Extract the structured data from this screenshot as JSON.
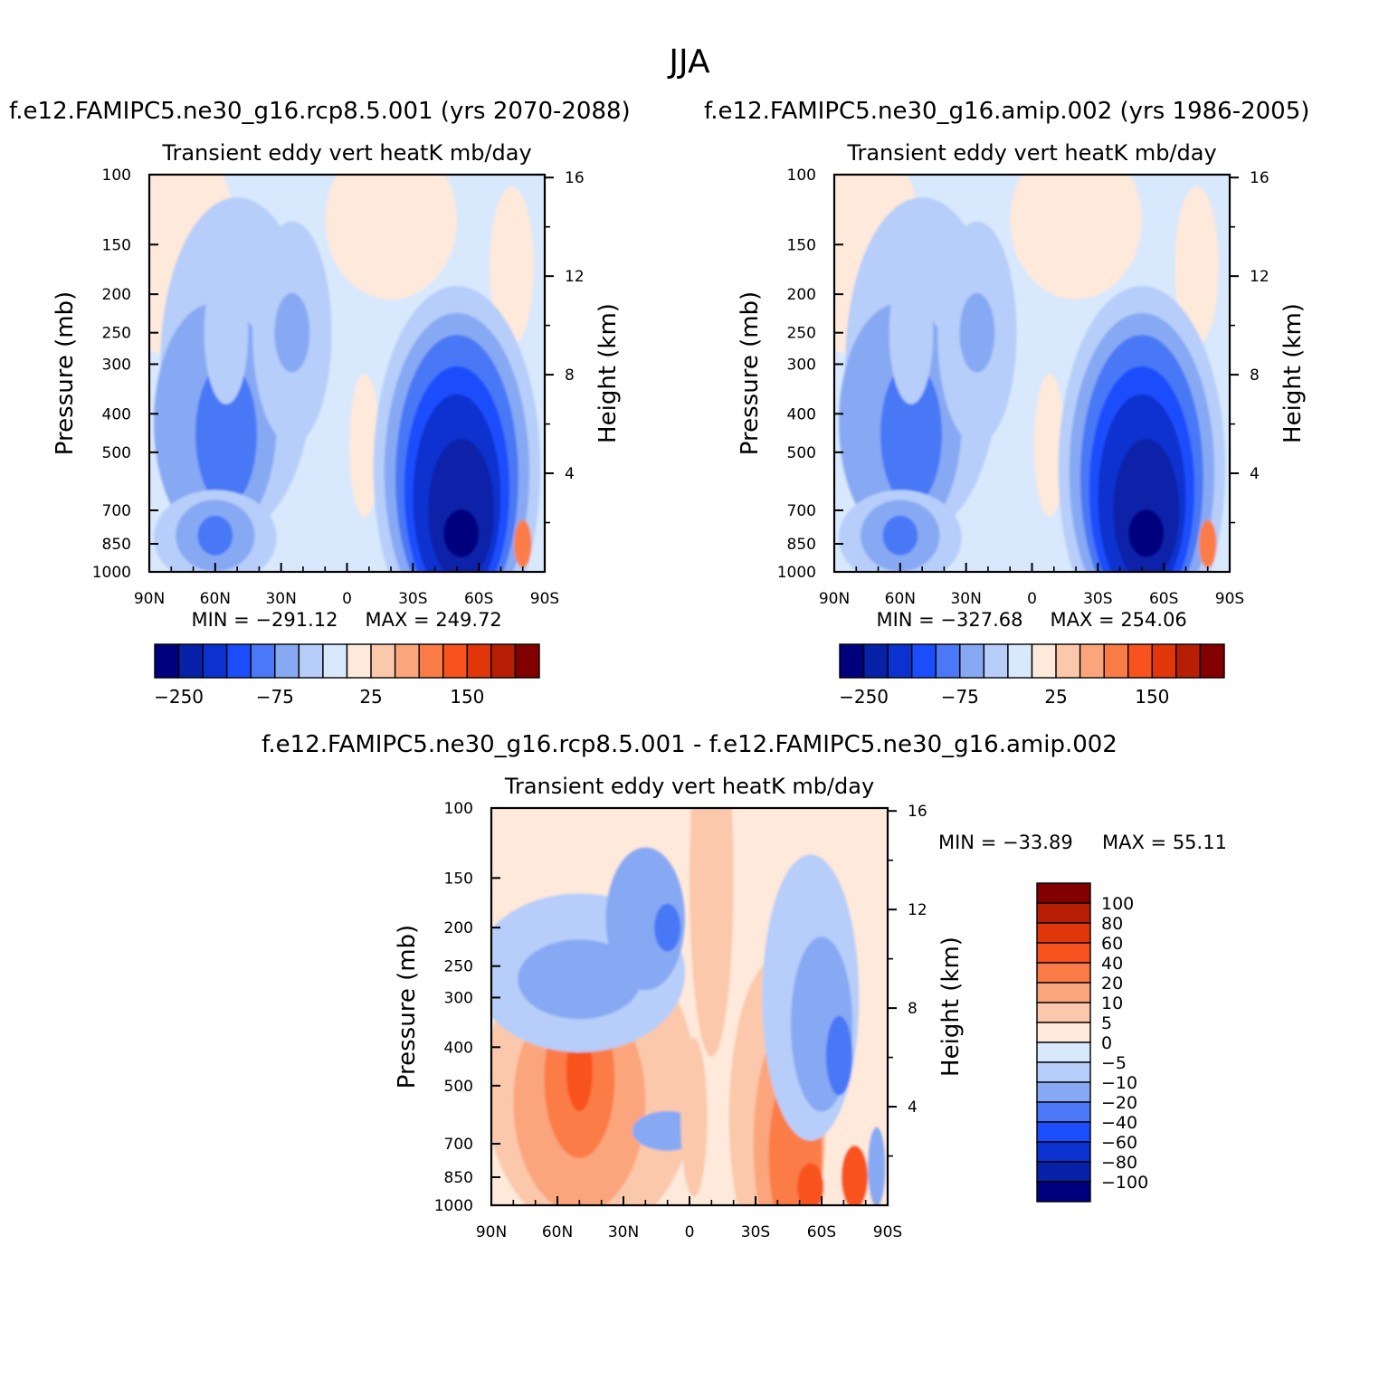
{
  "figure": {
    "title": "JJA",
    "panel_a_title": "f.e12.FAMIPC5.ne30_g16.rcp8.5.001 (yrs 2070-2088)",
    "panel_b_title": "f.e12.FAMIPC5.ne30_g16.amip.002 (yrs 1986-2005)",
    "panel_c_title": "f.e12.FAMIPC5.ne30_g16.rcp8.5.001 - f.e12.FAMIPC5.ne30_g16.amip.002"
  },
  "chart_data": [
    {
      "type": "heatmap",
      "panel": "a",
      "title": "Transient eddy vert heatK mb/day",
      "xlabel": "",
      "ylabel": "Pressure (mb)",
      "y2label": "Height (km)",
      "x_ticks": [
        "90N",
        "60N",
        "30N",
        "0",
        "30S",
        "60S",
        "90S"
      ],
      "xlim": [
        90,
        -90
      ],
      "y_ticks": [
        100,
        150,
        200,
        250,
        300,
        400,
        500,
        700,
        850,
        1000
      ],
      "ylim": [
        1000,
        100
      ],
      "y_scale": "log",
      "y2_ticks": [
        4,
        8,
        12,
        16
      ],
      "min_label": "MIN = -291.12",
      "max_label": "MAX = 249.72",
      "colorbar": {
        "orientation": "horizontal",
        "labels": [
          "-250",
          "-75",
          "25",
          "150"
        ],
        "colors": [
          "#00007f",
          "#0721a8",
          "#0b31cf",
          "#1c4dfd",
          "#4a78f6",
          "#87a9f3",
          "#b6cef9",
          "#d8e8fd",
          "#fee9da",
          "#fbc8ab",
          "#fba57d",
          "#fb7b46",
          "#f8531e",
          "#e0360a",
          "#b71f05",
          "#820000"
        ]
      }
    },
    {
      "type": "heatmap",
      "panel": "b",
      "title": "Transient eddy vert heatK mb/day",
      "xlabel": "",
      "ylabel": "Pressure (mb)",
      "y2label": "Height (km)",
      "x_ticks": [
        "90N",
        "60N",
        "30N",
        "0",
        "30S",
        "60S",
        "90S"
      ],
      "xlim": [
        90,
        -90
      ],
      "y_ticks": [
        100,
        150,
        200,
        250,
        300,
        400,
        500,
        700,
        850,
        1000
      ],
      "ylim": [
        1000,
        100
      ],
      "y_scale": "log",
      "y2_ticks": [
        4,
        8,
        12,
        16
      ],
      "min_label": "MIN = -327.68",
      "max_label": "MAX = 254.06",
      "colorbar": {
        "orientation": "horizontal",
        "labels": [
          "-250",
          "-75",
          "25",
          "150"
        ],
        "colors": [
          "#00007f",
          "#0721a8",
          "#0b31cf",
          "#1c4dfd",
          "#4a78f6",
          "#87a9f3",
          "#b6cef9",
          "#d8e8fd",
          "#fee9da",
          "#fbc8ab",
          "#fba57d",
          "#fb7b46",
          "#f8531e",
          "#e0360a",
          "#b71f05",
          "#820000"
        ]
      }
    },
    {
      "type": "heatmap",
      "panel": "c",
      "title": "Transient eddy vert heatK mb/day",
      "xlabel": "",
      "ylabel": "Pressure (mb)",
      "y2label": "Height (km)",
      "x_ticks": [
        "90N",
        "60N",
        "30N",
        "0",
        "30S",
        "60S",
        "90S"
      ],
      "xlim": [
        90,
        -90
      ],
      "y_ticks": [
        100,
        150,
        200,
        250,
        300,
        400,
        500,
        700,
        850,
        1000
      ],
      "ylim": [
        1000,
        100
      ],
      "y_scale": "log",
      "y2_ticks": [
        4,
        8,
        12,
        16
      ],
      "min_label": "MIN = -33.89",
      "max_label": "MAX =  55.11",
      "colorbar": {
        "orientation": "vertical",
        "labels": [
          "100",
          "80",
          "60",
          "40",
          "20",
          "10",
          "5",
          "0",
          "-5",
          "-10",
          "-20",
          "-40",
          "-60",
          "-80",
          "-100"
        ],
        "colors": [
          "#820000",
          "#b71f05",
          "#e0360a",
          "#f8531e",
          "#fb7b46",
          "#fba57d",
          "#fbc8ab",
          "#fee9da",
          "#d8e8fd",
          "#b6cef9",
          "#87a9f3",
          "#4a78f6",
          "#1c4dfd",
          "#0b31cf",
          "#0721a8",
          "#00007f"
        ]
      }
    }
  ]
}
